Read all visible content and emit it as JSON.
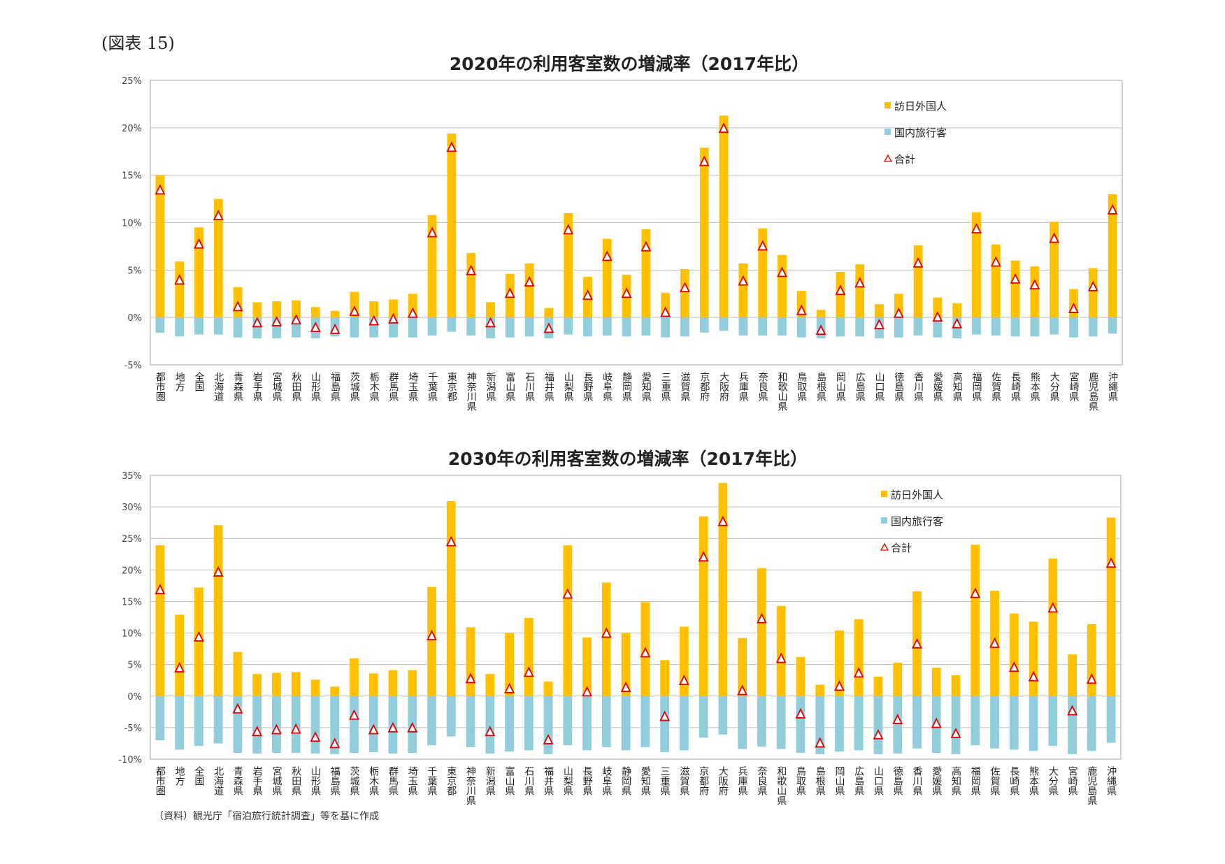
{
  "figure_label": "(図表 15)",
  "source_note": "（資料）観光庁「宿泊旅行統計調査」等を基に作成",
  "colors": {
    "foreign": "#FFC000",
    "domestic": "#92CDDC",
    "total_stroke": "#E00000",
    "grid": "#BFBFBF"
  },
  "chart_data": [
    {
      "type": "bar",
      "title": "2020年の利用客室数の増減率（2017年比）",
      "xlabel": "",
      "ylabel": "",
      "ylim": [
        -5,
        25
      ],
      "yticks": [
        -5,
        0,
        5,
        10,
        15,
        20,
        25
      ],
      "ytick_labels": [
        "-5%",
        "0%",
        "5%",
        "10%",
        "15%",
        "20%",
        "25%"
      ],
      "grid": true,
      "stacked": true,
      "legend_position": "top-right",
      "categories": [
        "都市圏",
        "地方",
        "全国",
        "北海道",
        "青森県",
        "岩手県",
        "宮城県",
        "秋田県",
        "山形県",
        "福島県",
        "茨城県",
        "栃木県",
        "群馬県",
        "埼玉県",
        "千葉県",
        "東京都",
        "神奈川県",
        "新潟県",
        "富山県",
        "石川県",
        "福井県",
        "山梨県",
        "長野県",
        "岐阜県",
        "静岡県",
        "愛知県",
        "三重県",
        "滋賀県",
        "京都府",
        "大阪府",
        "兵庫県",
        "奈良県",
        "和歌山県",
        "鳥取県",
        "島根県",
        "岡山県",
        "広島県",
        "山口県",
        "徳島県",
        "香川県",
        "愛媛県",
        "高知県",
        "福岡県",
        "佐賀県",
        "長崎県",
        "熊本県",
        "大分県",
        "宮崎県",
        "鹿児島県",
        "沖縄県"
      ],
      "series": [
        {
          "name": "訪日外国人",
          "kind": "bar",
          "values": [
            15.0,
            5.9,
            9.5,
            12.5,
            3.2,
            1.6,
            1.7,
            1.8,
            1.1,
            0.7,
            2.7,
            1.7,
            1.9,
            2.5,
            10.8,
            19.4,
            6.8,
            1.6,
            4.6,
            5.7,
            1.0,
            11.0,
            4.3,
            8.3,
            4.5,
            9.3,
            2.6,
            5.1,
            17.9,
            21.3,
            5.7,
            9.4,
            6.6,
            2.8,
            0.8,
            4.8,
            5.6,
            1.4,
            2.5,
            7.6,
            2.1,
            1.5,
            11.1,
            7.7,
            6.0,
            5.4,
            10.1,
            3.0,
            5.2,
            13.0
          ]
        },
        {
          "name": "国内旅行客",
          "kind": "bar",
          "values": [
            -1.6,
            -2.0,
            -1.8,
            -1.8,
            -2.1,
            -2.2,
            -2.2,
            -2.1,
            -2.2,
            -2.0,
            -2.1,
            -2.1,
            -2.1,
            -2.1,
            -1.9,
            -1.5,
            -1.9,
            -2.2,
            -2.1,
            -2.0,
            -2.2,
            -1.8,
            -2.0,
            -1.9,
            -2.0,
            -1.9,
            -2.1,
            -2.0,
            -1.6,
            -1.4,
            -1.9,
            -1.9,
            -1.9,
            -2.1,
            -2.2,
            -2.0,
            -2.0,
            -2.2,
            -2.1,
            -1.9,
            -2.1,
            -2.2,
            -1.8,
            -1.9,
            -2.0,
            -2.0,
            -1.8,
            -2.1,
            -2.0,
            -1.7
          ]
        },
        {
          "name": "合計",
          "kind": "marker",
          "values": [
            13.4,
            3.9,
            7.7,
            10.7,
            1.1,
            -0.6,
            -0.5,
            -0.3,
            -1.1,
            -1.3,
            0.6,
            -0.4,
            -0.2,
            0.4,
            8.9,
            17.9,
            4.9,
            -0.6,
            2.5,
            3.7,
            -1.2,
            9.2,
            2.3,
            6.4,
            2.5,
            7.4,
            0.5,
            3.1,
            16.4,
            19.9,
            3.8,
            7.5,
            4.7,
            0.7,
            -1.4,
            2.8,
            3.6,
            -0.8,
            0.4,
            5.7,
            0.0,
            -0.7,
            9.3,
            5.8,
            4.0,
            3.4,
            8.3,
            0.9,
            3.2,
            11.3
          ]
        }
      ]
    },
    {
      "type": "bar",
      "title": "2030年の利用客室数の増減率（2017年比）",
      "xlabel": "",
      "ylabel": "",
      "ylim": [
        -10,
        35
      ],
      "yticks": [
        -10,
        -5,
        0,
        5,
        10,
        15,
        20,
        25,
        30,
        35
      ],
      "ytick_labels": [
        "-10%",
        "-5%",
        "0%",
        "5%",
        "10%",
        "15%",
        "20%",
        "25%",
        "30%",
        "35%"
      ],
      "grid": true,
      "stacked": true,
      "legend_position": "top-right",
      "categories": [
        "都市圏",
        "地方",
        "全国",
        "北海道",
        "青森県",
        "岩手県",
        "宮城県",
        "秋田県",
        "山形県",
        "福島県",
        "茨城県",
        "栃木県",
        "群馬県",
        "埼玉県",
        "千葉県",
        "東京都",
        "神奈川県",
        "新潟県",
        "富山県",
        "石川県",
        "福井県",
        "山梨県",
        "長野県",
        "岐阜県",
        "静岡県",
        "愛知県",
        "三重県",
        "滋賀県",
        "京都府",
        "大阪府",
        "兵庫県",
        "奈良県",
        "和歌山県",
        "鳥取県",
        "島根県",
        "岡山県",
        "広島県",
        "山口県",
        "徳島県",
        "香川県",
        "愛媛県",
        "高知県",
        "福岡県",
        "佐賀県",
        "長崎県",
        "熊本県",
        "大分県",
        "宮崎県",
        "鹿児島県",
        "沖縄県"
      ],
      "series": [
        {
          "name": "訪日外国人",
          "kind": "bar",
          "values": [
            23.9,
            12.9,
            17.2,
            27.1,
            7.0,
            3.5,
            3.7,
            3.8,
            2.6,
            1.5,
            6.0,
            3.6,
            4.1,
            4.1,
            17.3,
            30.9,
            10.9,
            3.5,
            10.0,
            12.4,
            2.3,
            23.9,
            9.3,
            18.0,
            10.0,
            14.9,
            5.7,
            11.0,
            28.5,
            33.8,
            9.2,
            20.3,
            14.3,
            6.2,
            1.8,
            10.4,
            12.2,
            3.1,
            5.3,
            16.6,
            4.5,
            3.3,
            24.0,
            16.7,
            13.1,
            11.8,
            21.8,
            6.6,
            11.4,
            28.3
          ]
        },
        {
          "name": "国内旅行客",
          "kind": "bar",
          "values": [
            -7.0,
            -8.5,
            -7.9,
            -7.5,
            -9.0,
            -9.1,
            -9.0,
            -9.0,
            -9.1,
            -9.2,
            -9.0,
            -8.9,
            -9.1,
            -9.0,
            -7.8,
            -6.4,
            -8.1,
            -9.1,
            -8.8,
            -8.6,
            -9.2,
            -7.8,
            -8.6,
            -8.1,
            -8.6,
            -8.1,
            -8.9,
            -8.6,
            -6.6,
            -6.1,
            -8.4,
            -8.0,
            -8.4,
            -9.0,
            -9.2,
            -8.8,
            -8.6,
            -9.2,
            -9.1,
            -8.3,
            -9.0,
            -9.2,
            -7.8,
            -8.3,
            -8.5,
            -8.7,
            -7.9,
            -9.2,
            -8.7,
            -7.4
          ]
        },
        {
          "name": "合計",
          "kind": "marker",
          "values": [
            16.8,
            4.4,
            9.3,
            19.6,
            -2.1,
            -5.7,
            -5.4,
            -5.3,
            -6.6,
            -7.6,
            -3.1,
            -5.4,
            -5.1,
            -5.1,
            9.5,
            24.4,
            2.7,
            -5.7,
            1.1,
            3.7,
            -7.0,
            16.1,
            0.6,
            9.9,
            1.3,
            6.8,
            -3.3,
            2.4,
            22.0,
            27.6,
            0.8,
            12.2,
            5.9,
            -2.9,
            -7.5,
            1.5,
            3.6,
            -6.2,
            -3.8,
            8.2,
            -4.4,
            -6.0,
            16.2,
            8.3,
            4.5,
            3.0,
            13.9,
            -2.4,
            2.6,
            21.0
          ]
        }
      ]
    }
  ]
}
